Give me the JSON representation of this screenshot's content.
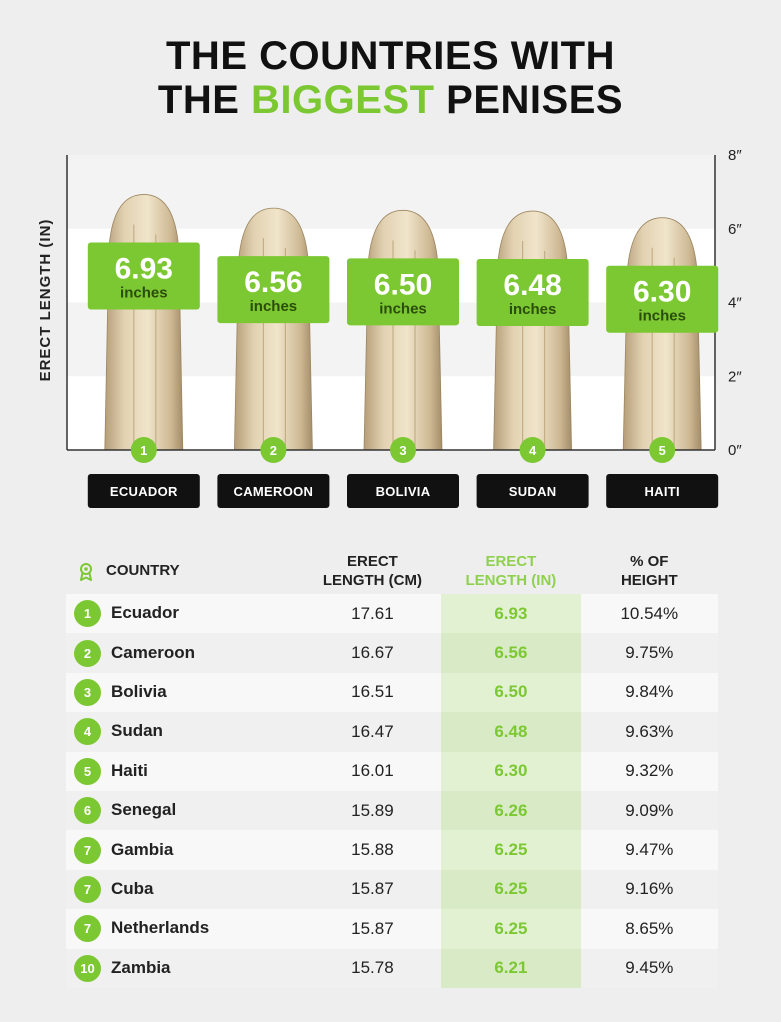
{
  "title_line1": "THE COUNTRIES WITH",
  "title_line2_pre": "THE ",
  "title_line2_highlight": "BIGGEST",
  "title_line2_post": " PENISES",
  "colors": {
    "accent": "#7cc832",
    "dark": "#111111",
    "label_bg": "#111111"
  },
  "chart_data": {
    "type": "bar",
    "ylabel": "ERECT LENGTH (IN)",
    "ylim": [
      0,
      8
    ],
    "yticks": [
      0,
      2,
      4,
      6,
      8
    ],
    "ytick_labels": [
      "0″",
      "2″",
      "4″",
      "6″",
      "8″"
    ],
    "unit_label": "inches",
    "categories": [
      "ECUADOR",
      "CAMEROON",
      "BOLIVIA",
      "SUDAN",
      "HAITI"
    ],
    "ranks": [
      "1",
      "2",
      "3",
      "4",
      "5"
    ],
    "values": [
      6.93,
      6.56,
      6.5,
      6.48,
      6.3
    ],
    "value_labels": [
      "6.93",
      "6.56",
      "6.50",
      "6.48",
      "6.30"
    ],
    "grid": true,
    "bar_style": "banana"
  },
  "table": {
    "headers": {
      "country": "COUNTRY",
      "cm_line1": "ERECT",
      "cm_line2": "LENGTH (CM)",
      "in_line1": "ERECT",
      "in_line2": "LENGTH (IN)",
      "pct_line1": "% OF",
      "pct_line2": "HEIGHT"
    },
    "rows": [
      {
        "rank": "1",
        "country": "Ecuador",
        "cm": "17.61",
        "in": "6.93",
        "pct": "10.54%"
      },
      {
        "rank": "2",
        "country": "Cameroon",
        "cm": "16.67",
        "in": "6.56",
        "pct": "9.75%"
      },
      {
        "rank": "3",
        "country": "Bolivia",
        "cm": "16.51",
        "in": "6.50",
        "pct": "9.84%"
      },
      {
        "rank": "4",
        "country": "Sudan",
        "cm": "16.47",
        "in": "6.48",
        "pct": "9.63%"
      },
      {
        "rank": "5",
        "country": "Haiti",
        "cm": "16.01",
        "in": "6.30",
        "pct": "9.32%"
      },
      {
        "rank": "6",
        "country": "Senegal",
        "cm": "15.89",
        "in": "6.26",
        "pct": "9.09%"
      },
      {
        "rank": "7",
        "country": "Gambia",
        "cm": "15.88",
        "in": "6.25",
        "pct": "9.47%"
      },
      {
        "rank": "7",
        "country": "Cuba",
        "cm": "15.87",
        "in": "6.25",
        "pct": "9.16%"
      },
      {
        "rank": "7",
        "country": "Netherlands",
        "cm": "15.87",
        "in": "6.25",
        "pct": "8.65%"
      },
      {
        "rank": "10",
        "country": "Zambia",
        "cm": "15.78",
        "in": "6.21",
        "pct": "9.45%"
      }
    ]
  }
}
